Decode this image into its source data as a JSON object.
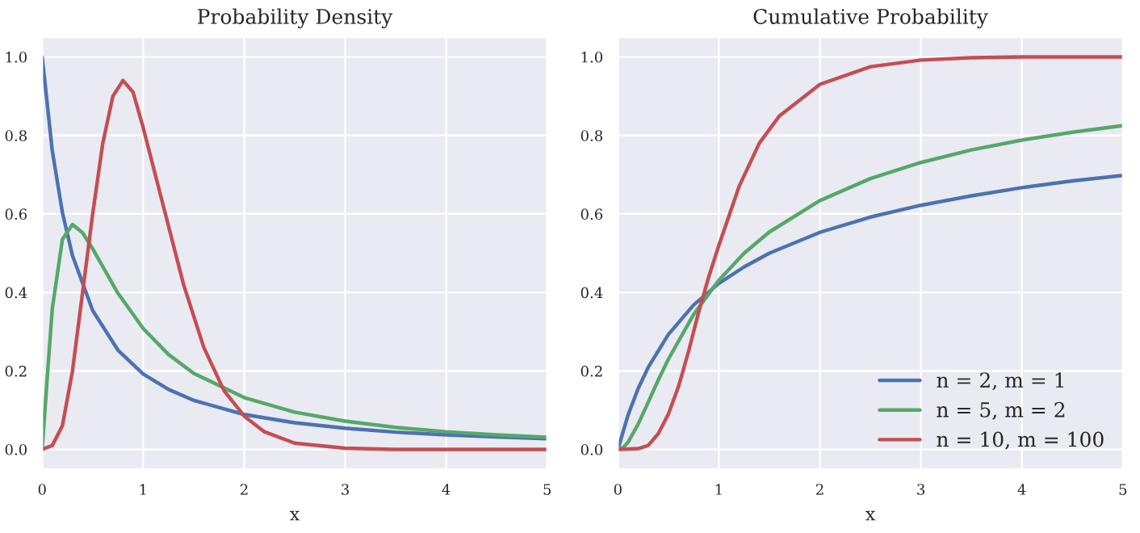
{
  "chart_data": [
    {
      "type": "line",
      "title": "Probability Density",
      "xlabel": "x",
      "xlim": [
        0,
        5
      ],
      "ylim": [
        -0.05,
        1.05
      ],
      "xticks": [
        0,
        1,
        2,
        3,
        4,
        5
      ],
      "yticks": [
        {
          "value": 0,
          "label": "0.0"
        },
        {
          "value": 0.2,
          "label": "0.2"
        },
        {
          "value": 0.4,
          "label": "0.4"
        },
        {
          "value": 0.6,
          "label": "0.6"
        },
        {
          "value": 0.8,
          "label": "0.8"
        },
        {
          "value": 1,
          "label": "1.0"
        }
      ],
      "grid": true,
      "legend": false,
      "series": [
        {
          "color": "#4c72b0",
          "x": [
            0,
            0.1,
            0.2,
            0.3,
            0.5,
            0.75,
            1,
            1.25,
            1.5,
            2,
            2.5,
            3,
            3.5,
            4,
            4.5,
            5
          ],
          "values": [
            1,
            0.761,
            0.604,
            0.494,
            0.354,
            0.253,
            0.192,
            0.153,
            0.125,
            0.089,
            0.068,
            0.054,
            0.044,
            0.037,
            0.032,
            0.027
          ]
        },
        {
          "color": "#55a868",
          "x": [
            0,
            0.05,
            0.1,
            0.2,
            0.3,
            0.4,
            0.5,
            0.75,
            1,
            1.25,
            1.5,
            2,
            2.5,
            3,
            3.5,
            4,
            4.5,
            5
          ],
          "values": [
            0,
            0.183,
            0.358,
            0.535,
            0.573,
            0.552,
            0.511,
            0.398,
            0.308,
            0.242,
            0.194,
            0.132,
            0.095,
            0.072,
            0.056,
            0.045,
            0.037,
            0.031
          ]
        },
        {
          "color": "#c44e52",
          "x": [
            0,
            0.1,
            0.2,
            0.3,
            0.4,
            0.5,
            0.6,
            0.7,
            0.8,
            0.9,
            1,
            1.2,
            1.4,
            1.6,
            1.8,
            2,
            2.2,
            2.5,
            3,
            3.5,
            4,
            5
          ],
          "values": [
            0,
            0.01,
            0.06,
            0.2,
            0.4,
            0.6,
            0.78,
            0.9,
            0.94,
            0.91,
            0.82,
            0.62,
            0.42,
            0.26,
            0.15,
            0.085,
            0.045,
            0.016,
            0.003,
            0,
            0,
            0
          ]
        }
      ]
    },
    {
      "type": "line",
      "title": "Cumulative Probability",
      "xlabel": "x",
      "xlim": [
        0,
        5
      ],
      "ylim": [
        -0.05,
        1.05
      ],
      "xticks": [
        0,
        1,
        2,
        3,
        4,
        5
      ],
      "yticks": [
        {
          "value": 0,
          "label": "0.0"
        },
        {
          "value": 0.2,
          "label": "0.2"
        },
        {
          "value": 0.4,
          "label": "0.4"
        },
        {
          "value": 0.6,
          "label": "0.6"
        },
        {
          "value": 0.8,
          "label": "0.8"
        },
        {
          "value": 1,
          "label": "1.0"
        }
      ],
      "grid": true,
      "legend": "bottom right",
      "series": [
        {
          "name": "n = 2, m = 1",
          "color": "#4c72b0",
          "x": [
            0,
            0.1,
            0.2,
            0.3,
            0.5,
            0.75,
            1,
            1.25,
            1.5,
            2,
            2.5,
            3,
            3.5,
            4,
            4.5,
            5
          ],
          "values": [
            0,
            0.087,
            0.155,
            0.209,
            0.293,
            0.368,
            0.423,
            0.465,
            0.5,
            0.553,
            0.592,
            0.622,
            0.646,
            0.667,
            0.684,
            0.698
          ]
        },
        {
          "name": "n = 5, m = 2",
          "color": "#55a868",
          "x": [
            0,
            0.05,
            0.1,
            0.2,
            0.3,
            0.4,
            0.5,
            0.75,
            1,
            1.25,
            1.5,
            2,
            2.5,
            3,
            3.5,
            4,
            4.5,
            5
          ],
          "values": [
            0,
            0.004,
            0.018,
            0.064,
            0.12,
            0.177,
            0.23,
            0.344,
            0.431,
            0.5,
            0.554,
            0.634,
            0.69,
            0.731,
            0.763,
            0.788,
            0.808,
            0.825
          ]
        },
        {
          "name": "n = 10, m = 100",
          "color": "#c44e52",
          "x": [
            0,
            0.2,
            0.3,
            0.4,
            0.5,
            0.6,
            0.7,
            0.8,
            0.9,
            1,
            1.2,
            1.4,
            1.6,
            1.8,
            2,
            2.5,
            3,
            3.5,
            4,
            5
          ],
          "values": [
            0,
            0.002,
            0.01,
            0.04,
            0.09,
            0.16,
            0.25,
            0.35,
            0.44,
            0.52,
            0.67,
            0.78,
            0.85,
            0.89,
            0.93,
            0.975,
            0.992,
            0.998,
            1,
            1
          ]
        }
      ]
    }
  ]
}
